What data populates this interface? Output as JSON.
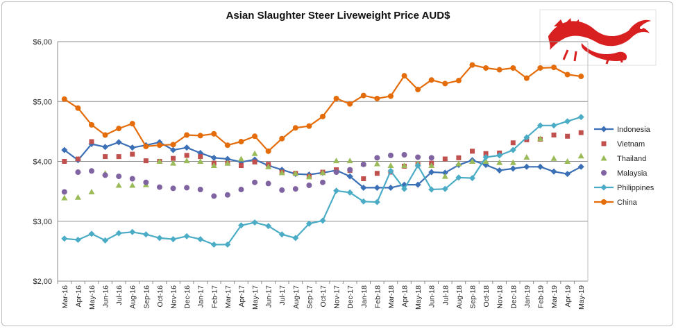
{
  "chart_data": {
    "type": "line",
    "title": "Asian Slaughter Steer Liveweight Price AUD$",
    "xlabel": "",
    "ylabel": "",
    "ylim": [
      2,
      6
    ],
    "yticks": [
      "$2,00",
      "$3,00",
      "$4,00",
      "$5,00",
      "$6,00"
    ],
    "ytick_values": [
      2,
      3,
      4,
      5,
      6
    ],
    "grid": "horizontal",
    "legend_position": "right",
    "categories": [
      "Mar-16",
      "Apr-16",
      "May-16",
      "Jun-16",
      "Jul-16",
      "Aug-16",
      "Sep-16",
      "Oct-16",
      "Nov-16",
      "Dec-16",
      "Jan-17",
      "Feb-17",
      "Mar-17",
      "Apr-17",
      "May-17",
      "Jun-17",
      "Jul-17",
      "Aug-17",
      "Sep-17",
      "Oct-17",
      "Nov-17",
      "Dec-17",
      "Jan-18",
      "Feb-18",
      "Mar-18",
      "Apr-18",
      "May-18",
      "Jun-18",
      "Jul-18",
      "Aug-18",
      "Sep-18",
      "Oct-18",
      "Nov-18",
      "Dec-18",
      "Jan-19",
      "Feb-19",
      "Mar-19",
      "Apr-19",
      "May-19"
    ],
    "series": [
      {
        "name": "Indonesia",
        "color": "#3b6fb6",
        "marker": "diamond",
        "line": true,
        "values": [
          4.19,
          4.02,
          4.29,
          4.24,
          4.32,
          4.23,
          4.27,
          4.32,
          4.19,
          4.23,
          4.14,
          4.06,
          4.04,
          3.99,
          4.03,
          3.93,
          3.86,
          3.79,
          3.78,
          3.81,
          3.85,
          3.75,
          3.56,
          3.56,
          3.56,
          3.61,
          3.61,
          3.82,
          3.81,
          3.94,
          4.02,
          3.94,
          3.85,
          3.88,
          3.91,
          3.91,
          3.83,
          3.79,
          3.91
        ]
      },
      {
        "name": "Vietnam",
        "color": "#c0504d",
        "marker": "square",
        "line": false,
        "values": [
          4.0,
          4.04,
          4.33,
          4.08,
          4.08,
          4.12,
          4.01,
          4.0,
          4.05,
          4.1,
          4.08,
          3.97,
          3.97,
          3.93,
          3.99,
          3.95,
          3.82,
          3.8,
          3.75,
          3.82,
          3.86,
          3.85,
          3.71,
          3.8,
          3.82,
          3.92,
          3.95,
          3.97,
          4.04,
          4.06,
          4.17,
          4.13,
          4.14,
          4.31,
          4.36,
          4.37,
          4.44,
          4.42,
          4.48
        ]
      },
      {
        "name": "Thailand",
        "color": "#9bbb59",
        "marker": "triangle",
        "line": false,
        "values": [
          3.39,
          3.4,
          3.49,
          3.8,
          3.6,
          3.6,
          3.61,
          4.0,
          3.97,
          4.01,
          4.0,
          3.93,
          3.97,
          4.04,
          4.13,
          3.91,
          3.81,
          3.8,
          3.74,
          3.81,
          4.01,
          4.01,
          3.96,
          3.96,
          3.93,
          3.93,
          3.96,
          3.93,
          3.75,
          3.96,
          4.0,
          4.0,
          3.98,
          3.98,
          4.07,
          4.38,
          4.05,
          4.0,
          4.09
        ]
      },
      {
        "name": "Malaysia",
        "color": "#8064a2",
        "marker": "circle",
        "line": false,
        "values": [
          3.49,
          3.82,
          3.84,
          3.77,
          3.75,
          3.71,
          3.65,
          3.57,
          3.55,
          3.56,
          3.53,
          3.42,
          3.44,
          3.53,
          3.65,
          3.63,
          3.52,
          3.54,
          3.6,
          3.65,
          3.82,
          3.86,
          3.95,
          4.06,
          4.1,
          4.11,
          4.07,
          4.06,
          null,
          null,
          null,
          null,
          null,
          null,
          null,
          null,
          null,
          null,
          null
        ]
      },
      {
        "name": "Philippines",
        "color": "#4bacc6",
        "marker": "diamond",
        "line": true,
        "values": [
          2.71,
          2.69,
          2.79,
          2.68,
          2.8,
          2.82,
          2.78,
          2.72,
          2.7,
          2.75,
          2.7,
          2.61,
          2.61,
          2.93,
          2.98,
          2.92,
          2.78,
          2.72,
          2.96,
          3.01,
          3.51,
          3.48,
          3.33,
          3.32,
          3.84,
          3.54,
          3.93,
          3.53,
          3.54,
          3.73,
          3.72,
          4.07,
          4.1,
          4.19,
          4.4,
          4.6,
          4.6,
          4.67,
          4.74
        ]
      },
      {
        "name": "China",
        "color": "#e46c0a",
        "marker": "circle",
        "line": true,
        "values": [
          5.04,
          4.89,
          4.61,
          4.44,
          4.55,
          4.63,
          4.25,
          4.27,
          4.28,
          4.44,
          4.43,
          4.46,
          4.27,
          4.33,
          4.42,
          4.17,
          4.38,
          4.56,
          4.59,
          4.75,
          5.05,
          4.96,
          5.1,
          5.05,
          5.09,
          5.43,
          5.2,
          5.36,
          5.3,
          5.35,
          5.61,
          5.56,
          5.53,
          5.56,
          5.39,
          5.56,
          5.57,
          5.45,
          5.42
        ]
      }
    ]
  }
}
